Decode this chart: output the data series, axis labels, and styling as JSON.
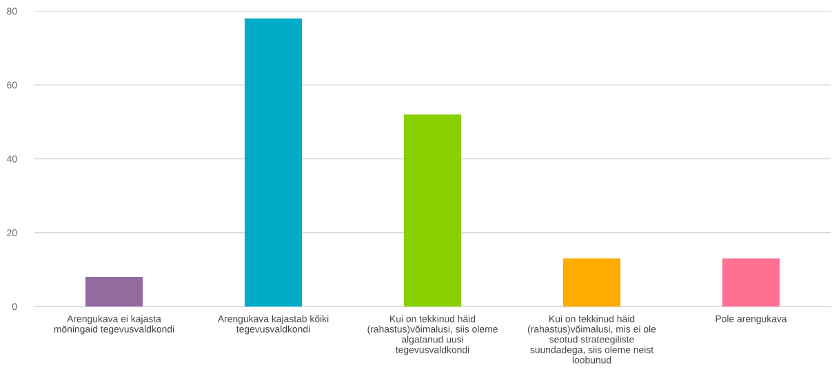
{
  "chart_data": {
    "type": "bar",
    "categories": [
      "Arengukava ei kajasta\nmõningaid tegevusvaldkondi",
      "Arengukava kajastab kõiki\ntegevusvaldkondi",
      "Kui on tekkinud häid\n(rahastus)võimalusi, siis oleme\nalgatanud uusi\ntegevusvaldkondi",
      "Kui on tekkinud häid\n(rahastus)võimalusi, mis ei ole\nseotud strateegiliste\nsuundadega, siis oleme neist\nloobunud",
      "Pole arengukava"
    ],
    "values": [
      8,
      78,
      52,
      13,
      13
    ],
    "colors": [
      "#926b9f",
      "#00acc8",
      "#88d000",
      "#ffab00",
      "#ff7092"
    ],
    "ylim": [
      0,
      80
    ],
    "yticks": [
      0,
      20,
      40,
      60,
      80
    ],
    "grid": "y"
  }
}
